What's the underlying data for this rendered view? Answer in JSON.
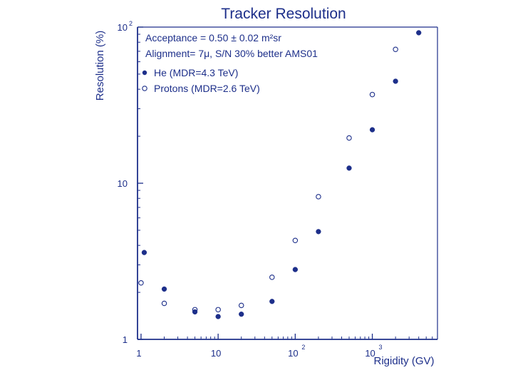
{
  "chart_data": {
    "type": "scatter",
    "title": "Tracker Resolution",
    "xlabel": "Rigidity (GV)",
    "ylabel": "Resolution (%)",
    "xscale": "log",
    "yscale": "log",
    "xlim": [
      0.9,
      7000
    ],
    "ylim": [
      1,
      100
    ],
    "x_ticks": [
      {
        "base": "1",
        "exp": ""
      },
      {
        "base": "10",
        "exp": ""
      },
      {
        "base": "10",
        "exp": "2"
      },
      {
        "base": "10",
        "exp": "3"
      }
    ],
    "y_ticks": [
      {
        "base": "1",
        "exp": ""
      },
      {
        "base": "10",
        "exp": ""
      },
      {
        "base": "10",
        "exp": "2"
      }
    ],
    "annotations": [
      "Acceptance  = 0.50 ± 0.02 m²sr",
      "Alignment= 7μ, S/N 30% better AMS01"
    ],
    "legend_position": "top-left",
    "series": [
      {
        "name": "He (MDR=4.3 TeV)",
        "marker": "filled-circle",
        "x": [
          1.1,
          2,
          5,
          10,
          20,
          50,
          100,
          200,
          500,
          1000,
          2000,
          4000
        ],
        "y": [
          3.6,
          2.1,
          1.5,
          1.4,
          1.45,
          1.75,
          2.8,
          4.9,
          12.5,
          22,
          45,
          92
        ]
      },
      {
        "name": "Protons (MDR=2.6 TeV)",
        "marker": "open-circle",
        "x": [
          1,
          2,
          5,
          10,
          20,
          50,
          100,
          200,
          500,
          1000,
          2000
        ],
        "y": [
          2.3,
          1.7,
          1.55,
          1.55,
          1.65,
          2.5,
          4.3,
          8.2,
          19.5,
          37,
          72
        ]
      }
    ]
  }
}
